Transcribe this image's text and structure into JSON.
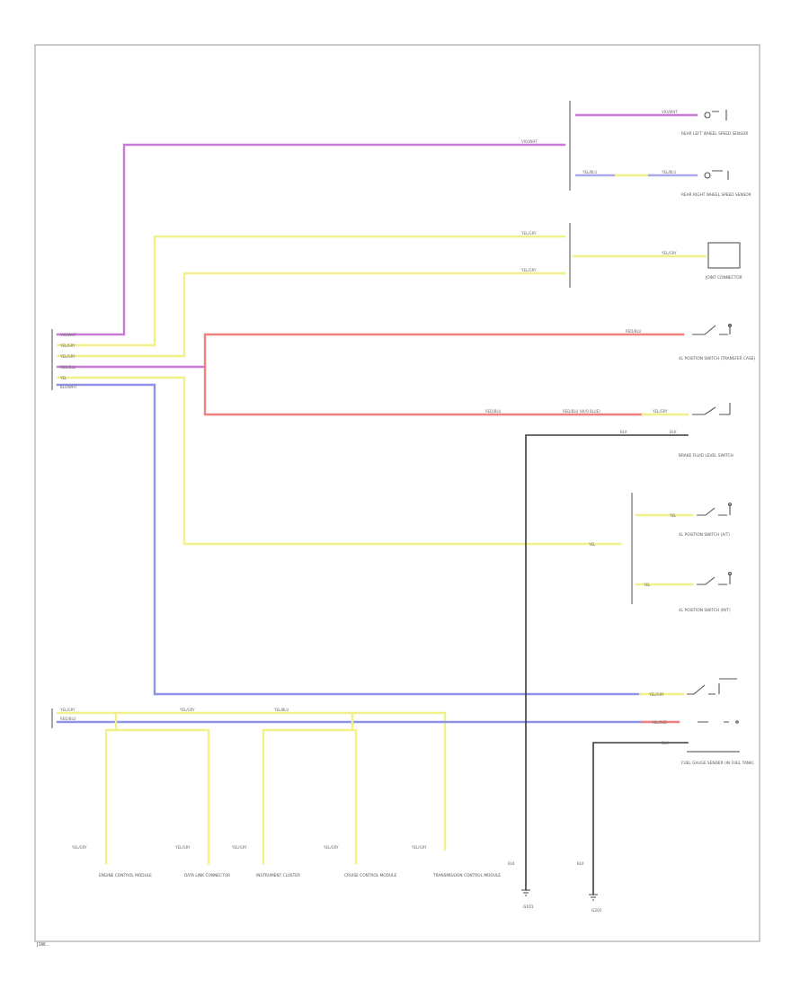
{
  "wire_colors": {
    "violet": "#c97ad6",
    "yellow": "#f1f18a",
    "red": "#f08080",
    "blue": "#8f93e8",
    "yellow_blue": "#a9a9f0",
    "black": "#3a3a3a"
  },
  "wire_labels": {
    "violet": "VIO/WHT",
    "yellow": "YEL/GRY",
    "yel": "YEL",
    "red": "RED/BLU",
    "red_long": "RED/BLU (W/O BLUE)",
    "blue": "BLU/WHT",
    "yellow_blue": "YEL/BLU",
    "black": "BLK",
    "yellow_red": "YEL/RED"
  },
  "left_connector_labels": [
    "VIO/WHT",
    "YEL/GRY",
    "YEL/GRY",
    "RED/BLU",
    "YEL",
    "BLU/WHT"
  ],
  "components": {
    "rear_left_sensor": "REAR LEFT WHEEL SPEED SENSOR",
    "rear_right_sensor": "REAR RIGHT WHEEL SPEED SENSOR",
    "junction": "JOINT CONNECTOR",
    "switch_a": "4L POSITION SWITCH (TRANSFER CASE)",
    "switch_b": "BRAKE FLUID LEVEL SWITCH",
    "switch_c": "4L POSITION SWITCH (A/T)",
    "switch_d": "4L POSITION SWITCH (M/T)",
    "fuel_gauge": "FUEL GAUGE SENDER (IN FUEL TANK)",
    "bottom_1": "ENGINE CONTROL MODULE",
    "bottom_2": "DATA LINK CONNECTOR",
    "bottom_3": "INSTRUMENT CLUSTER",
    "bottom_4": "CRUISE CONTROL MODULE",
    "bottom_5": "TRANSMISSION CONTROL MODULE",
    "ground_1": "G101",
    "ground_2": "G201"
  },
  "footer_code": "J1W..."
}
